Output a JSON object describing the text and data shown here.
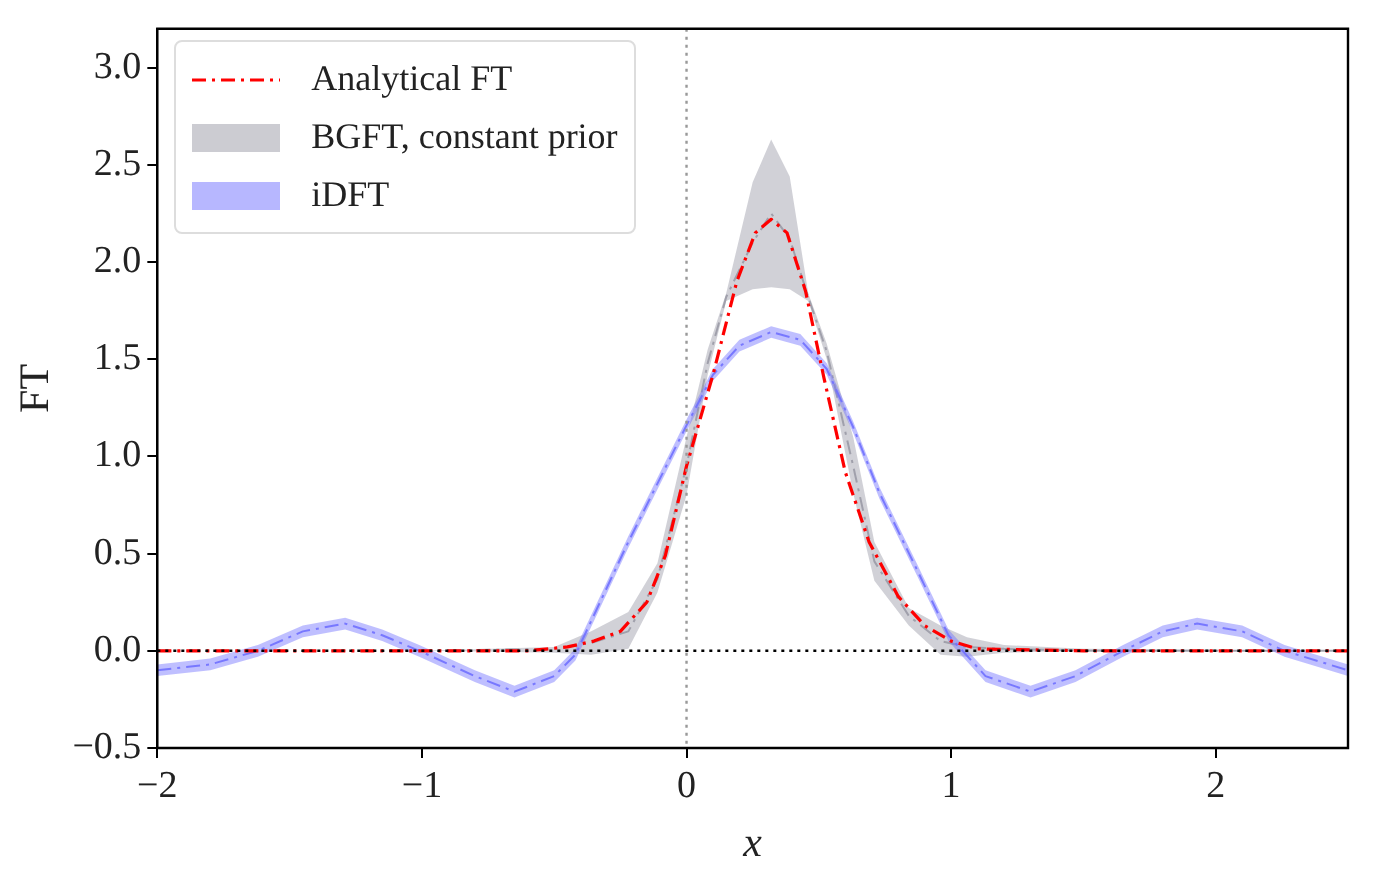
{
  "chart_data": {
    "type": "line",
    "xlabel": "x",
    "ylabel": "FT",
    "xlim": [
      -2,
      2.5
    ],
    "xticks": [
      {
        "value": -2,
        "label": "−2"
      },
      {
        "value": -1,
        "label": "−1"
      },
      0,
      1,
      2
    ],
    "ylim": [
      -0.5,
      3.2
    ],
    "yticks": [
      {
        "value": -0.5,
        "label": "−0.5"
      },
      {
        "value": 0,
        "label": "0.0"
      },
      0.5,
      {
        "value": 1,
        "label": "1.0"
      },
      1.5,
      {
        "value": 2,
        "label": "2.0"
      },
      2.5,
      {
        "value": 3,
        "label": "3.0"
      }
    ],
    "legend": "top left",
    "grid": false,
    "marker": "none",
    "ref_lines": [
      {
        "axis": "y",
        "value": 0,
        "color": "#000000",
        "line_style": "dotted"
      },
      {
        "axis": "x",
        "value": 0,
        "color": "#999999",
        "line_style": "dotted"
      }
    ],
    "series": [
      {
        "name": "BGFT, constant prior",
        "color": "#9a9aa6",
        "line_style": "dashed",
        "x": [
          -2,
          -1,
          -0.5,
          -0.36,
          -0.22,
          -0.11,
          0,
          0.08,
          0.15,
          0.25,
          0.32,
          0.39,
          0.46,
          0.53,
          0.63,
          0.71,
          0.84,
          0.96,
          1.06,
          1.2,
          1.5,
          2.5
        ],
        "values": [
          0,
          0,
          0.01,
          0.04,
          0.1,
          0.37,
          0.95,
          1.48,
          1.82,
          2.1,
          2.25,
          2.12,
          1.82,
          1.54,
          0.95,
          0.46,
          0.18,
          0.05,
          0.02,
          0.01,
          0,
          0
        ],
        "upper": [
          0,
          0,
          0.02,
          0.1,
          0.2,
          0.45,
          1.1,
          1.55,
          1.84,
          2.41,
          2.63,
          2.44,
          1.84,
          1.58,
          1.1,
          0.56,
          0.22,
          0.13,
          0.07,
          0.03,
          0.01,
          0
        ],
        "lower": [
          0,
          0,
          -0.01,
          -0.02,
          0.01,
          0.3,
          0.8,
          1.42,
          1.8,
          1.86,
          1.87,
          1.86,
          1.8,
          1.5,
          0.81,
          0.36,
          0.13,
          -0.02,
          -0.03,
          -0.01,
          0,
          0
        ]
      },
      {
        "name": "iDFT",
        "color": "#7070ff",
        "line_style": "dashed",
        "x": [
          -2,
          -1.8,
          -1.62,
          -1.45,
          -1.29,
          -1.15,
          -1.01,
          -0.8,
          -0.65,
          -0.5,
          -0.42,
          -0.22,
          0,
          0.1,
          0.2,
          0.32,
          0.43,
          0.53,
          0.63,
          0.73,
          0.87,
          0.99,
          1.13,
          1.3,
          1.47,
          1.65,
          1.8,
          1.93,
          2.1,
          2.26,
          2.5
        ],
        "values": [
          -0.1,
          -0.07,
          0,
          0.1,
          0.14,
          0.08,
          0,
          -0.13,
          -0.21,
          -0.13,
          -0.02,
          0.56,
          1.16,
          1.42,
          1.57,
          1.64,
          1.6,
          1.45,
          1.15,
          0.81,
          0.42,
          0.08,
          -0.13,
          -0.21,
          -0.13,
          0,
          0.1,
          0.14,
          0.1,
          0,
          -0.1
        ],
        "upper": [
          -0.07,
          -0.04,
          0.03,
          0.13,
          0.17,
          0.11,
          0.03,
          -0.1,
          -0.18,
          -0.1,
          0.01,
          0.59,
          1.19,
          1.45,
          1.6,
          1.67,
          1.63,
          1.48,
          1.18,
          0.84,
          0.45,
          0.11,
          -0.1,
          -0.18,
          -0.1,
          0.03,
          0.13,
          0.17,
          0.13,
          0.03,
          -0.07
        ],
        "lower": [
          -0.13,
          -0.1,
          -0.03,
          0.07,
          0.11,
          0.05,
          -0.03,
          -0.16,
          -0.24,
          -0.16,
          -0.05,
          0.53,
          1.13,
          1.39,
          1.54,
          1.61,
          1.57,
          1.42,
          1.12,
          0.78,
          0.39,
          0.05,
          -0.16,
          -0.24,
          -0.16,
          -0.03,
          0.07,
          0.11,
          0.07,
          -0.03,
          -0.13
        ]
      },
      {
        "name": "Analytical FT",
        "color": "#ff0000",
        "line_style": "dashed",
        "x": [
          -2,
          -1,
          -0.6,
          -0.45,
          -0.35,
          -0.25,
          -0.15,
          -0.08,
          0,
          0.1,
          0.19,
          0.26,
          0.32,
          0.38,
          0.45,
          0.52,
          0.6,
          0.69,
          0.8,
          0.9,
          1.0,
          1.1,
          1.5,
          2.5
        ],
        "values": [
          0,
          0,
          0,
          0.02,
          0.05,
          0.1,
          0.25,
          0.49,
          0.95,
          1.42,
          1.9,
          2.15,
          2.22,
          2.15,
          1.85,
          1.4,
          0.92,
          0.56,
          0.28,
          0.13,
          0.05,
          0.01,
          0,
          0
        ]
      }
    ]
  }
}
